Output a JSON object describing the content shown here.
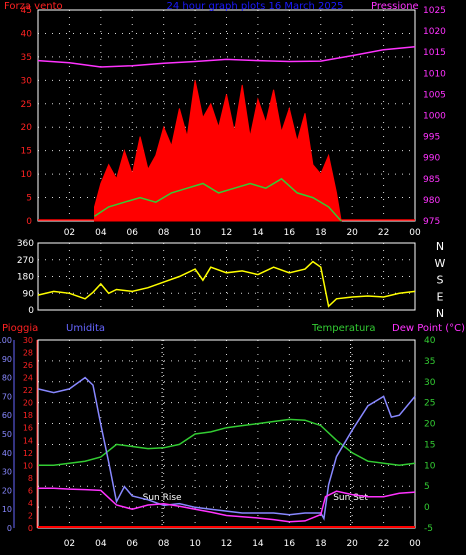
{
  "chart_data": [
    {
      "type": "line",
      "panel": "wind-pressure",
      "title": "24 hour graph plots  16 March 2025",
      "left_label": "Forza vento",
      "right_label": "Pressione",
      "x_ticks": [
        "02",
        "04",
        "06",
        "08",
        "10",
        "12",
        "14",
        "16",
        "18",
        "20",
        "22",
        "00"
      ],
      "y_left_ticks": [
        0,
        5,
        10,
        15,
        20,
        25,
        30,
        35,
        40,
        45
      ],
      "ylim_left": [
        0,
        45
      ],
      "y_right_ticks": [
        975,
        980,
        985,
        990,
        995,
        1000,
        1005,
        1010,
        1015,
        1020,
        1025
      ],
      "ylim_right": [
        975,
        1025
      ],
      "xlim": [
        0,
        24
      ],
      "grid": true,
      "series": [
        {
          "role": "pressure",
          "color": "#ff33ff",
          "x": [
            0,
            2,
            4,
            6,
            8,
            10,
            12,
            14,
            16,
            18,
            20,
            22,
            24
          ],
          "y": [
            1013,
            1012.5,
            1011.5,
            1011.8,
            1012.4,
            1012.8,
            1013.3,
            1013.0,
            1012.8,
            1012.9,
            1014.2,
            1015.6,
            1016.3
          ]
        },
        {
          "role": "gust",
          "color": "#ff0000",
          "x": [
            3.6,
            4.0,
            4.5,
            5.0,
            5.5,
            6.0,
            6.5,
            7.0,
            7.5,
            8.0,
            8.5,
            9.0,
            9.5,
            10.0,
            10.5,
            11.0,
            11.5,
            12.0,
            12.5,
            13.0,
            13.5,
            14.0,
            14.5,
            15.0,
            15.5,
            16.0,
            16.5,
            17.0,
            17.5,
            18.0,
            18.5,
            19.0,
            19.3
          ],
          "y": [
            3,
            8,
            12,
            9,
            15,
            10,
            18,
            11,
            14,
            20,
            16,
            24,
            18,
            30,
            22,
            25,
            20,
            27,
            19,
            29,
            18,
            26,
            21,
            28,
            19,
            24,
            17,
            23,
            12,
            10,
            14,
            6,
            0
          ]
        },
        {
          "role": "wind-speed",
          "color": "#33cc33",
          "x": [
            3.6,
            4.5,
            5.5,
            6.5,
            7.5,
            8.5,
            9.5,
            10.5,
            11.5,
            12.5,
            13.5,
            14.5,
            15.5,
            16.5,
            17.5,
            18.5,
            19.3
          ],
          "y": [
            1,
            3,
            4,
            5,
            4,
            6,
            7,
            8,
            6,
            7,
            8,
            7,
            9,
            6,
            5,
            3,
            0
          ]
        }
      ]
    },
    {
      "type": "line",
      "panel": "wind-direction",
      "y_ticks": [
        0,
        90,
        180,
        270,
        360
      ],
      "ylim": [
        0,
        360
      ],
      "xlim": [
        0,
        24
      ],
      "right_labels": [
        "N",
        "W",
        "S",
        "E",
        "N"
      ],
      "grid": true,
      "series": [
        {
          "role": "direction",
          "color": "#ffff00",
          "x": [
            0,
            1,
            2,
            3,
            3.5,
            4,
            4.5,
            5,
            6,
            7,
            8,
            9,
            10,
            10.5,
            11,
            12,
            13,
            14,
            15,
            16,
            17,
            17.5,
            18,
            18.5,
            19,
            20,
            21,
            22,
            23,
            24
          ],
          "y": [
            80,
            100,
            90,
            60,
            95,
            140,
            90,
            110,
            100,
            120,
            150,
            180,
            220,
            160,
            230,
            200,
            210,
            190,
            230,
            200,
            220,
            260,
            230,
            20,
            60,
            70,
            75,
            70,
            90,
            100
          ]
        }
      ]
    },
    {
      "type": "line",
      "panel": "rain-humidity-temp",
      "labels": [
        "Pioggia",
        "Umidita",
        "Temperatura",
        "Dew Point (°C)"
      ],
      "annotations": [
        "Sun Rise",
        "Sun Set"
      ],
      "x_ticks": [
        "02",
        "04",
        "06",
        "08",
        "10",
        "12",
        "14",
        "16",
        "18",
        "20",
        "22",
        "00"
      ],
      "y_humidity_ticks": [
        0,
        10,
        20,
        30,
        40,
        50,
        60,
        70,
        80,
        90,
        100
      ],
      "ylim_humidity": [
        0,
        100
      ],
      "y_rain_ticks": [
        0,
        2,
        4,
        6,
        8,
        10,
        12,
        14,
        16,
        18,
        20,
        22,
        24,
        26,
        28,
        30
      ],
      "ylim_rain": [
        0,
        30
      ],
      "y_temp_ticks": [
        -5,
        0,
        5,
        10,
        15,
        20,
        25,
        30,
        35,
        40
      ],
      "ylim_temp": [
        -5,
        40
      ],
      "xlim": [
        0,
        24
      ],
      "sunrise_x": 7.9,
      "sunset_x": 19.9,
      "grid": true,
      "series": [
        {
          "role": "humidity",
          "color": "#8888ff",
          "x": [
            0,
            1,
            2,
            3,
            3.5,
            4,
            4.5,
            5,
            5.5,
            6,
            7,
            8,
            9,
            10,
            11,
            12,
            13,
            14,
            15,
            16,
            17,
            18,
            18.2,
            18.5,
            19,
            20,
            21,
            22,
            22.5,
            23,
            24
          ],
          "y": [
            74,
            72,
            74,
            80,
            76,
            55,
            35,
            14,
            22,
            17,
            15,
            12,
            13,
            11,
            10,
            9,
            8,
            8,
            8,
            7,
            8,
            8,
            5,
            23,
            38,
            52,
            65,
            70,
            59,
            60,
            70
          ]
        },
        {
          "role": "temperature",
          "color": "#33cc33",
          "x": [
            0,
            1,
            2,
            3,
            4,
            5,
            6,
            7,
            8,
            9,
            10,
            11,
            12,
            13,
            14,
            15,
            16,
            17,
            18,
            19,
            20,
            21,
            22,
            23,
            24
          ],
          "y": [
            10,
            10,
            10.5,
            11,
            12,
            15,
            14.5,
            14,
            14.2,
            15,
            17.5,
            18,
            19,
            19.5,
            20,
            20.5,
            21,
            20.8,
            19.5,
            16,
            13,
            11,
            10.5,
            10,
            10.5
          ]
        },
        {
          "role": "dew-point",
          "color": "#ff33ff",
          "x": [
            0,
            1,
            2,
            3,
            4,
            5,
            6,
            7,
            8,
            9,
            10,
            11,
            12,
            13,
            14,
            15,
            16,
            17,
            18,
            18.3,
            19,
            20,
            21,
            22,
            23,
            24
          ],
          "y": [
            4.5,
            4.5,
            4.3,
            4.2,
            4.0,
            0.5,
            -0.5,
            0.5,
            0.8,
            0.2,
            -0.5,
            -1.2,
            -2,
            -2.3,
            -2.6,
            -3,
            -3.5,
            -3.3,
            -1.8,
            2.5,
            3.8,
            3.0,
            2.5,
            2.5,
            3.3,
            3.6
          ]
        },
        {
          "role": "rain",
          "color": "#ff0000",
          "x": [
            0,
            24
          ],
          "y": [
            0,
            0
          ]
        }
      ]
    }
  ]
}
